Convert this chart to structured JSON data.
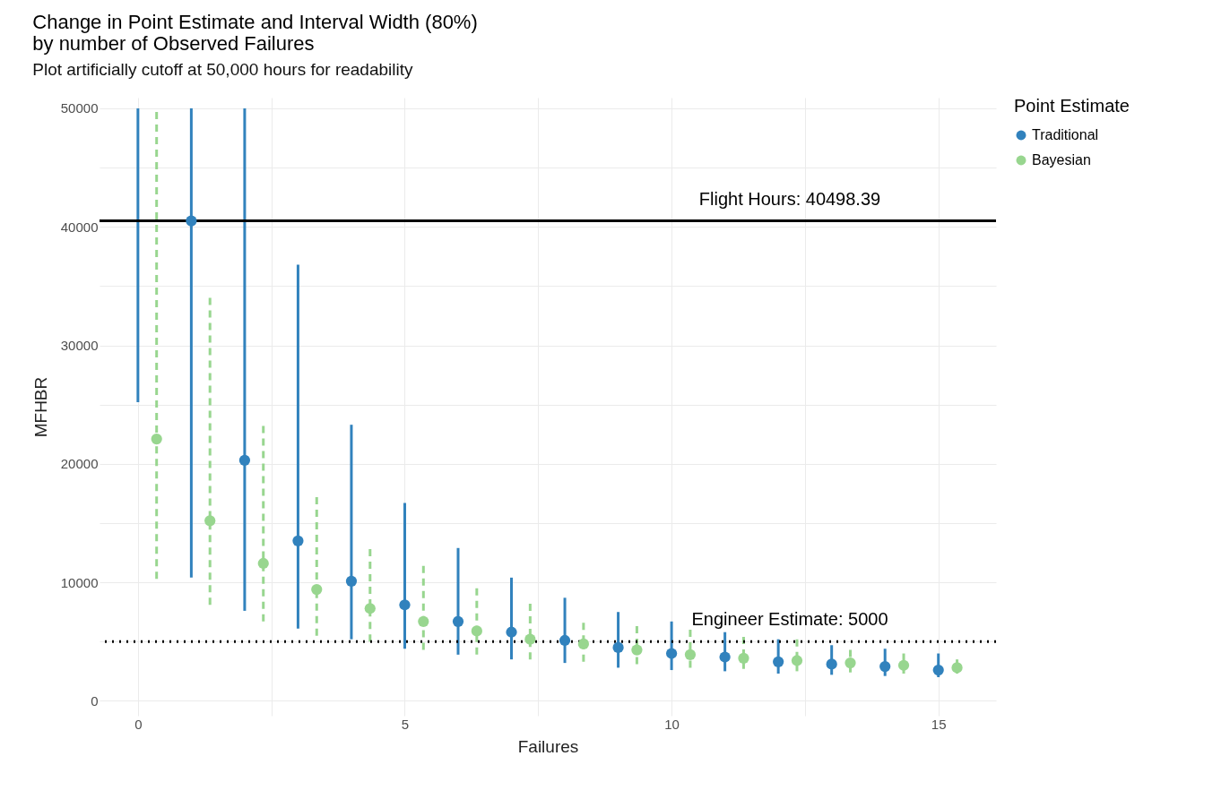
{
  "chart_data": {
    "type": "scatter",
    "title": [
      "Change in Point Estimate and Interval Width (80%)",
      "by number of Observed Failures"
    ],
    "subtitle": "Plot artificially cutoff at 50,000 hours for readability",
    "xlabel": "Failures",
    "ylabel": "MFHBR",
    "legend_title": "Point Estimate",
    "legend": "right",
    "grid": true,
    "marker": "circle",
    "xlim": [
      -0.72,
      16.08
    ],
    "xticks": [
      0,
      {
        "value": 2.5,
        "label": null
      },
      5,
      {
        "value": 7.5,
        "label": null
      },
      10,
      {
        "value": 12.5,
        "label": null
      },
      15
    ],
    "ylim": [
      -1250,
      50900
    ],
    "yticks": [
      0,
      {
        "value": 5000,
        "label": null
      },
      10000,
      {
        "value": 15000,
        "label": null
      },
      20000,
      {
        "value": 25000,
        "label": null
      },
      30000,
      {
        "value": 35000,
        "label": null
      },
      40000,
      {
        "value": 45000,
        "label": null
      },
      50000
    ],
    "series": [
      {
        "name": "Traditional",
        "color": "#3182bd",
        "line_style": "solid",
        "x": [
          1,
          2,
          3,
          4,
          5,
          6,
          7,
          8,
          9,
          10,
          11,
          12,
          13,
          14,
          15
        ],
        "values": [
          40500,
          20300,
          13500,
          10100,
          8100,
          6700,
          5800,
          5100,
          4500,
          4000,
          3700,
          3300,
          3100,
          2900,
          2600
        ],
        "errors": [
          [
            10400,
            50000
          ],
          [
            7600,
            50000
          ],
          [
            6100,
            36800
          ],
          [
            5200,
            23300
          ],
          [
            4400,
            16700
          ],
          [
            3900,
            12900
          ],
          [
            3500,
            10400
          ],
          [
            3200,
            8700
          ],
          [
            2800,
            7500
          ],
          [
            2600,
            6700
          ],
          [
            2500,
            5800
          ],
          [
            2300,
            5200
          ],
          [
            2200,
            4700
          ],
          [
            2100,
            4400
          ],
          [
            2000,
            4000
          ]
        ]
      },
      {
        "name": "Bayesian",
        "color": "#98d68f",
        "line_style": "dashed",
        "x": [
          0.35,
          1.35,
          2.35,
          3.35,
          4.35,
          5.35,
          6.35,
          7.35,
          8.35,
          9.35,
          10.35,
          11.35,
          12.35,
          13.35,
          14.35,
          15.35
        ],
        "values": [
          22100,
          15200,
          11600,
          9400,
          7800,
          6700,
          5900,
          5200,
          4800,
          4300,
          3900,
          3600,
          3400,
          3200,
          3000,
          2800
        ],
        "errors": [
          [
            10300,
            49700
          ],
          [
            8100,
            34000
          ],
          [
            6700,
            23200
          ],
          [
            5500,
            17200
          ],
          [
            5000,
            12800
          ],
          [
            4300,
            11400
          ],
          [
            3900,
            9500
          ],
          [
            3500,
            8200
          ],
          [
            3300,
            6600
          ],
          [
            3100,
            6300
          ],
          [
            2800,
            6000
          ],
          [
            2700,
            5400
          ],
          [
            2500,
            5200
          ],
          [
            2400,
            4300
          ],
          [
            2300,
            4000
          ],
          [
            2300,
            3500
          ]
        ]
      },
      {
        "type": "line",
        "color": "#3182bd",
        "line_style": "solid",
        "marker": "none",
        "x": [
          0,
          0
        ],
        "values": [
          25200,
          50000
        ]
      }
    ],
    "ref_lines": [
      {
        "axis": "y",
        "value": 40498.39,
        "label": "Flight Hours: 40498.39",
        "color": "#000000",
        "line_style": "solid"
      },
      {
        "axis": "y",
        "value": 5000,
        "label": "Engineer Estimate: 5000",
        "color": "#000000",
        "line_style": "dotted"
      }
    ]
  }
}
